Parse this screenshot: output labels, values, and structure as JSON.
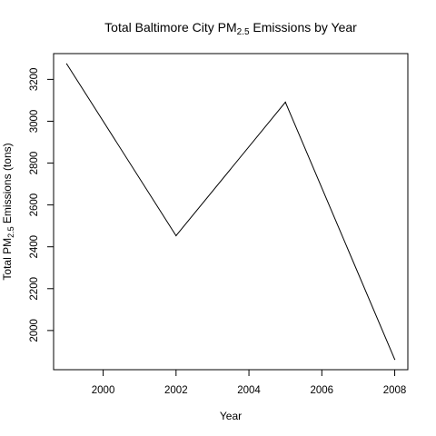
{
  "chart_data": {
    "type": "line",
    "title": "Total Baltimore City PM2.5 Emissions by Year",
    "title_parts": [
      "Total Baltimore City PM",
      "2.5",
      " Emissions by Year"
    ],
    "xlabel": "Year",
    "ylabel": "Total PM2.5 Emissions (tons)",
    "ylabel_parts": [
      "Total PM",
      "2.5",
      " Emissions (tons)"
    ],
    "x": [
      1999,
      2002,
      2005,
      2008
    ],
    "y": [
      3274,
      2453,
      3091,
      1862
    ],
    "xlim": [
      1998.64,
      2008.36
    ],
    "ylim": [
      1812.8,
      3323.2
    ],
    "xticks": [
      2000,
      2002,
      2004,
      2006,
      2008
    ],
    "yticks": [
      2000,
      2200,
      2400,
      2600,
      2800,
      3000,
      3200
    ],
    "grid": false,
    "line_color": "#000000"
  }
}
